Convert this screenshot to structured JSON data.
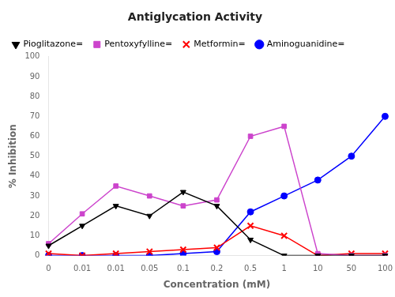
{
  "chart_data": {
    "type": "line",
    "title": "Antiglycation Activity",
    "xlabel": "Concentration (mM)",
    "ylabel": "% Inhibition",
    "categories": [
      "0",
      "0.01",
      "0.01",
      "0.05",
      "0.1",
      "0.2",
      "0.5",
      "1",
      "10",
      "50",
      "100"
    ],
    "series": [
      {
        "name": "Pioglitazone= ",
        "color": "#000000",
        "marker": "triangle_down",
        "line_style": "solid",
        "values": [
          5,
          15,
          25,
          20,
          32,
          25,
          8,
          0,
          0,
          0,
          0
        ]
      },
      {
        "name": "Pentoxyfylline= ",
        "color": "#cc44cc",
        "marker": "square",
        "line_style": "solid",
        "values": [
          6,
          21,
          35,
          30,
          25,
          28,
          60,
          65,
          1,
          0,
          0
        ]
      },
      {
        "name": "Metformin= ",
        "color": "#ff0000",
        "marker": "x",
        "line_style": "solid",
        "values": [
          1,
          0,
          1,
          2,
          3,
          4,
          15,
          10,
          0,
          1,
          1
        ]
      },
      {
        "name": "Aminoguanidine= ",
        "color": "#0000ff",
        "marker": "circle",
        "line_style": "solid",
        "values": [
          0,
          0,
          0,
          0,
          1,
          2,
          22,
          30,
          38,
          50,
          70
        ]
      }
    ],
    "ylim": [
      0,
      100
    ],
    "yticks": [
      0,
      10,
      20,
      30,
      40,
      50,
      60,
      70,
      80,
      90,
      100
    ],
    "grid": false,
    "legend": "upper left"
  }
}
